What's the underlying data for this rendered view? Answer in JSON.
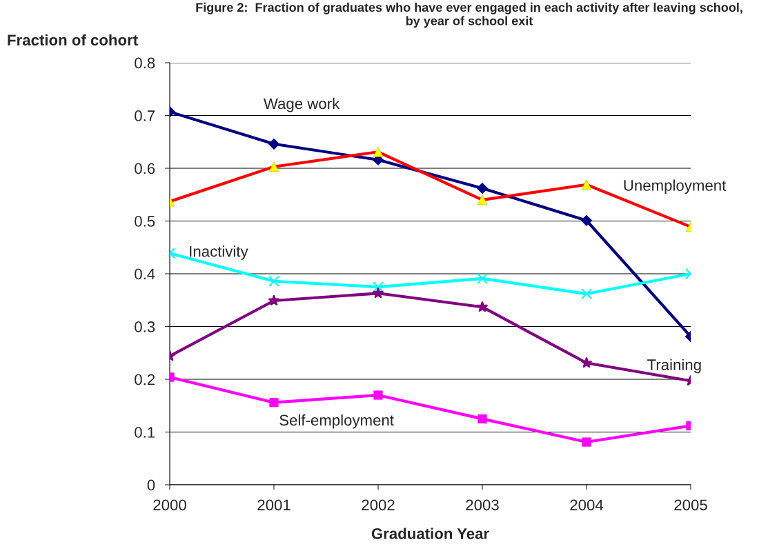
{
  "chart_data": {
    "type": "line",
    "title": "Figure 2:  Fraction of graduates who have ever engaged in each activity after leaving school,\nby year of school exit",
    "xlabel": "Graduation Year",
    "ylabel": "Fraction of cohort",
    "categories": [
      "2000",
      "2001",
      "2002",
      "2003",
      "2004",
      "2005"
    ],
    "series": [
      {
        "name": "Wage work",
        "color": "#000080",
        "marker": "diamond",
        "values": [
          0.707,
          0.646,
          0.616,
          0.562,
          0.501,
          0.281
        ]
      },
      {
        "name": "Unemployment",
        "color": "#ff0000",
        "colors": [
          "#ffff00",
          "#ffff00",
          "#ffff00",
          "#ffff00",
          "#ffff00",
          "#ffff00"
        ],
        "marker": "triangle",
        "values": [
          0.537,
          0.603,
          0.631,
          0.54,
          0.569,
          0.489
        ]
      },
      {
        "name": "Inactivity",
        "color": "#00ffff",
        "marker": "cross",
        "values": [
          0.439,
          0.386,
          0.375,
          0.391,
          0.362,
          0.4
        ]
      },
      {
        "name": "Training",
        "color": "#800080",
        "marker": "star",
        "values": [
          0.244,
          0.349,
          0.363,
          0.337,
          0.231,
          0.197
        ]
      },
      {
        "name": "Self-employment",
        "color": "#ff00ff",
        "marker": "square",
        "values": [
          0.204,
          0.156,
          0.17,
          0.125,
          0.081,
          0.112
        ]
      }
    ],
    "ylim": [
      0,
      0.8
    ],
    "yticks": [
      0,
      0.1,
      0.2,
      0.3,
      0.4,
      0.5,
      0.6,
      0.7,
      0.8
    ],
    "grid": "y",
    "legend": false,
    "line_style": "solid"
  }
}
